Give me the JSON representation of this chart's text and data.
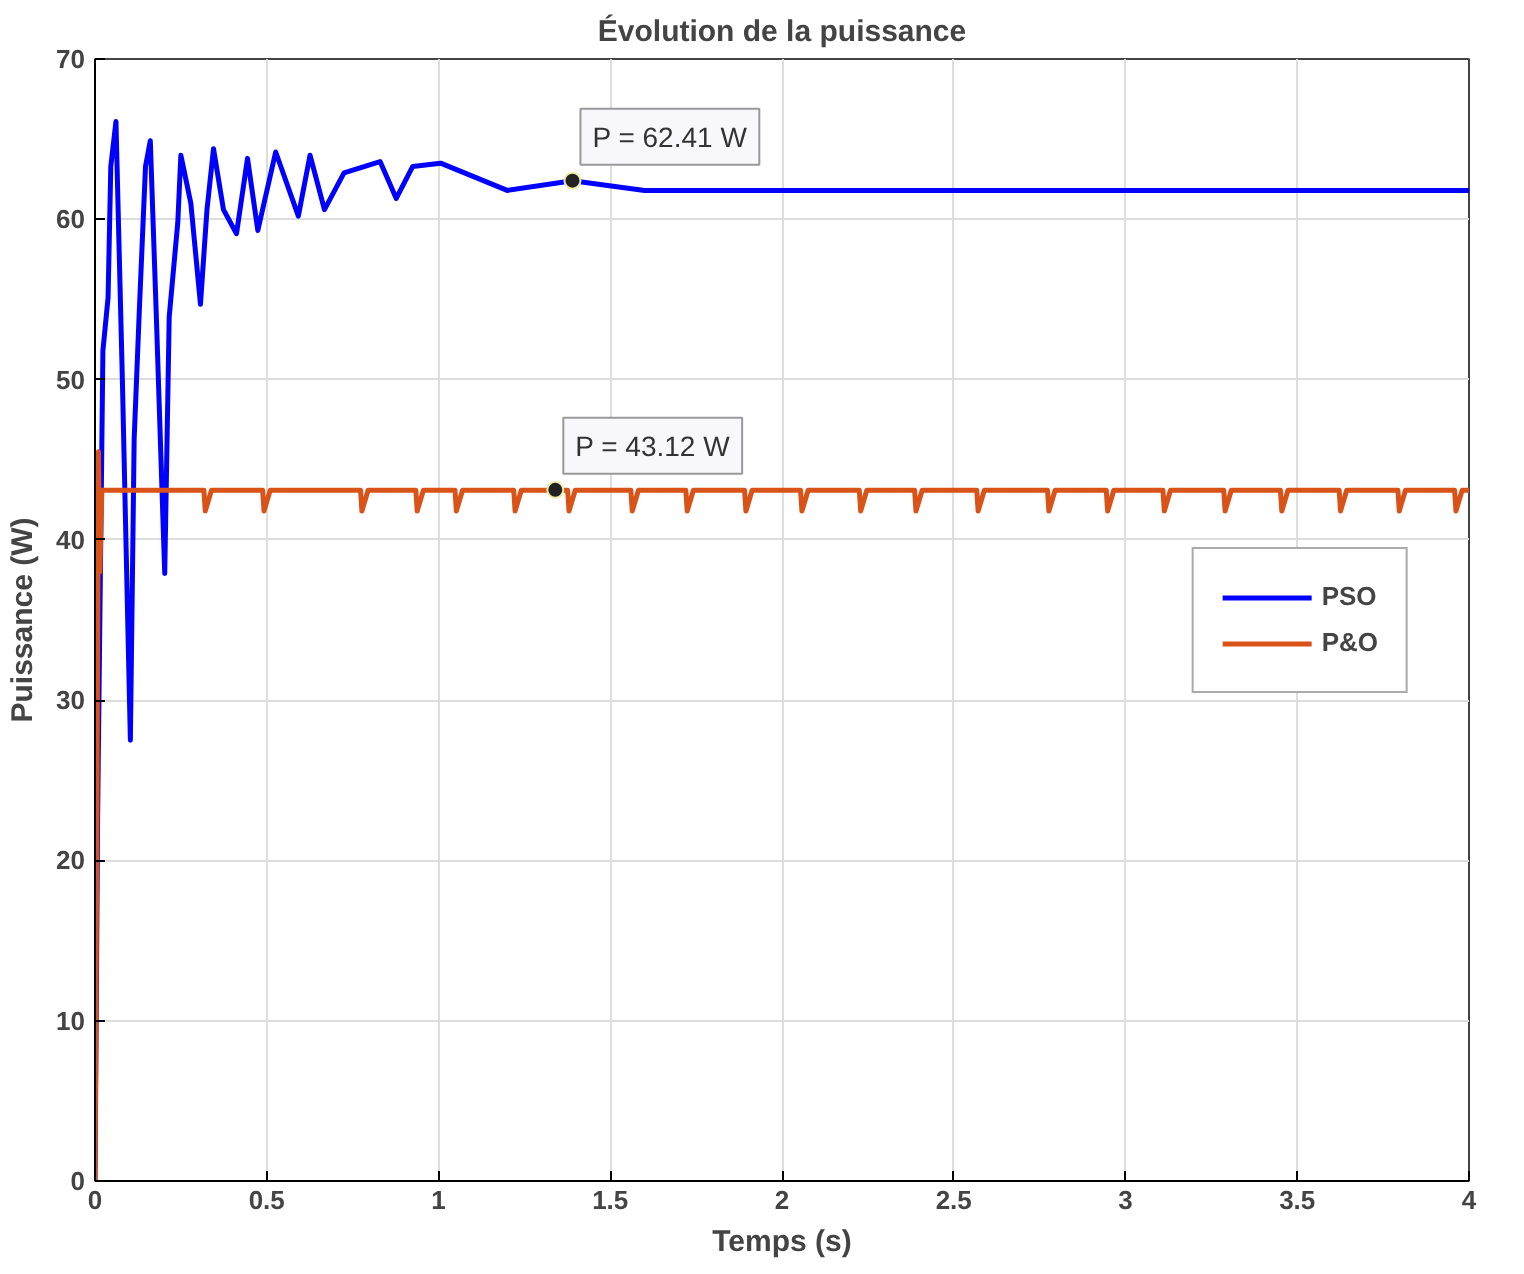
{
  "chart_data": {
    "type": "line",
    "title": "Évolution de la puissance",
    "xlabel": "Temps (s)",
    "ylabel": "Puissance (W)",
    "xlim": [
      0,
      4
    ],
    "ylim": [
      0,
      70
    ],
    "xticks": [
      0,
      0.5,
      1,
      1.5,
      2,
      2.5,
      3,
      3.5,
      4
    ],
    "yticks": [
      0,
      10,
      20,
      30,
      40,
      50,
      60,
      70
    ],
    "grid": true,
    "legend": "right",
    "line_style": "solid",
    "marker": "none",
    "series": [
      {
        "name": "PSO",
        "color": "#0000ff",
        "x": [
          0,
          0.0077,
          0.023,
          0.038,
          0.046,
          0.061,
          0.08,
          0.103,
          0.114,
          0.129,
          0.147,
          0.161,
          0.178,
          0.203,
          0.216,
          0.241,
          0.25,
          0.279,
          0.307,
          0.326,
          0.345,
          0.374,
          0.412,
          0.444,
          0.474,
          0.526,
          0.592,
          0.626,
          0.668,
          0.725,
          0.83,
          0.877,
          0.925,
          1.006,
          1.2,
          1.39,
          1.6,
          4
        ],
        "values": [
          0,
          22.8,
          51.8,
          55.1,
          63.3,
          66.1,
          49.7,
          27.5,
          46.3,
          54.3,
          63.3,
          64.9,
          54.3,
          37.9,
          53.9,
          59.8,
          64.0,
          61.0,
          54.7,
          60.6,
          64.4,
          60.6,
          59.1,
          63.8,
          59.3,
          64.2,
          60.2,
          64.0,
          60.6,
          62.9,
          63.6,
          61.3,
          63.3,
          63.5,
          61.8,
          62.41,
          61.8,
          61.8
        ]
      },
      {
        "name": "P&O",
        "color": "#d95319",
        "x": [
          0,
          0.005,
          0.01,
          0.014,
          0.02,
          0.317,
          0.321,
          0.339,
          0.488,
          0.492,
          0.51,
          0.773,
          0.777,
          0.795,
          0.934,
          0.938,
          0.956,
          1.048,
          1.052,
          1.07,
          1.219,
          1.223,
          1.241,
          1.376,
          1.38,
          1.398,
          1.56,
          1.564,
          1.582,
          1.72,
          1.724,
          1.742,
          1.891,
          1.895,
          1.913,
          2.054,
          2.058,
          2.076,
          2.225,
          2.229,
          2.247,
          2.386,
          2.39,
          2.408,
          2.567,
          2.571,
          2.589,
          2.773,
          2.777,
          2.795,
          2.944,
          2.948,
          2.966,
          3.109,
          3.113,
          3.131,
          3.286,
          3.29,
          3.308,
          3.451,
          3.455,
          3.473,
          3.622,
          3.626,
          3.644,
          3.793,
          3.797,
          3.815,
          3.958,
          3.962,
          3.98,
          4
        ],
        "values": [
          0,
          20,
          45.5,
          38,
          43.1,
          43.1,
          41.8,
          43.1,
          43.1,
          41.8,
          43.1,
          43.1,
          41.8,
          43.1,
          43.1,
          41.8,
          43.1,
          43.1,
          41.8,
          43.1,
          43.1,
          41.8,
          43.1,
          43.1,
          41.8,
          43.1,
          43.1,
          41.8,
          43.1,
          43.1,
          41.8,
          43.1,
          43.1,
          41.8,
          43.1,
          43.1,
          41.8,
          43.1,
          43.1,
          41.8,
          43.1,
          43.1,
          41.8,
          43.1,
          43.1,
          41.8,
          43.1,
          43.1,
          41.8,
          43.1,
          43.1,
          41.8,
          43.1,
          43.1,
          41.8,
          43.1,
          43.1,
          41.8,
          43.1,
          43.1,
          41.8,
          43.1,
          43.1,
          41.8,
          43.1,
          43.1,
          41.8,
          43.1,
          43.1,
          41.8,
          43.1,
          43.1
        ]
      }
    ],
    "annotations": [
      {
        "text": "P = 62.41 W",
        "x": 1.39,
        "y": 62.41
      },
      {
        "text": "P = 43.12 W",
        "x": 1.34,
        "y": 43.12
      }
    ]
  }
}
